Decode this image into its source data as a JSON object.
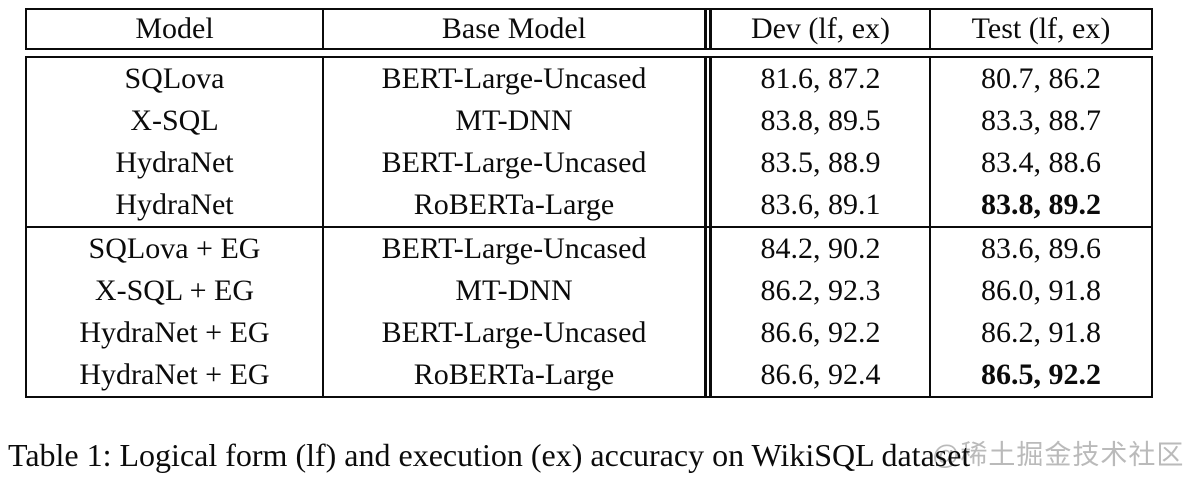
{
  "table": {
    "headers": [
      "Model",
      "Base Model",
      "Dev (lf, ex)",
      "Test (lf, ex)"
    ],
    "groups": [
      {
        "rows": [
          {
            "model": "SQLova",
            "base": "BERT-Large-Uncased",
            "dev": "81.6, 87.2",
            "test": "80.7, 86.2",
            "test_bold": false
          },
          {
            "model": "X-SQL",
            "base": "MT-DNN",
            "dev": "83.8, 89.5",
            "test": "83.3, 88.7",
            "test_bold": false
          },
          {
            "model": "HydraNet",
            "base": "BERT-Large-Uncased",
            "dev": "83.5, 88.9",
            "test": "83.4, 88.6",
            "test_bold": false
          },
          {
            "model": "HydraNet",
            "base": "RoBERTa-Large",
            "dev": "83.6, 89.1",
            "test": "83.8, 89.2",
            "test_bold": true
          }
        ]
      },
      {
        "rows": [
          {
            "model": "SQLova + EG",
            "base": "BERT-Large-Uncased",
            "dev": "84.2, 90.2",
            "test": "83.6, 89.6",
            "test_bold": false
          },
          {
            "model": "X-SQL + EG",
            "base": "MT-DNN",
            "dev": "86.2, 92.3",
            "test": "86.0, 91.8",
            "test_bold": false
          },
          {
            "model": "HydraNet + EG",
            "base": "BERT-Large-Uncased",
            "dev": "86.6, 92.2",
            "test": "86.2, 91.8",
            "test_bold": false
          },
          {
            "model": "HydraNet + EG",
            "base": "RoBERTa-Large",
            "dev": "86.6, 92.4",
            "test": "86.5, 92.2",
            "test_bold": true
          }
        ]
      }
    ]
  },
  "caption": "Table 1: Logical form (lf) and execution (ex) accuracy on WikiSQL dataset",
  "watermark": "@稀土掘金技术社区",
  "colors": {
    "background": "#ffffff",
    "text": "#0b0b0b",
    "border": "#0b0b0b",
    "watermark": "#828282"
  }
}
